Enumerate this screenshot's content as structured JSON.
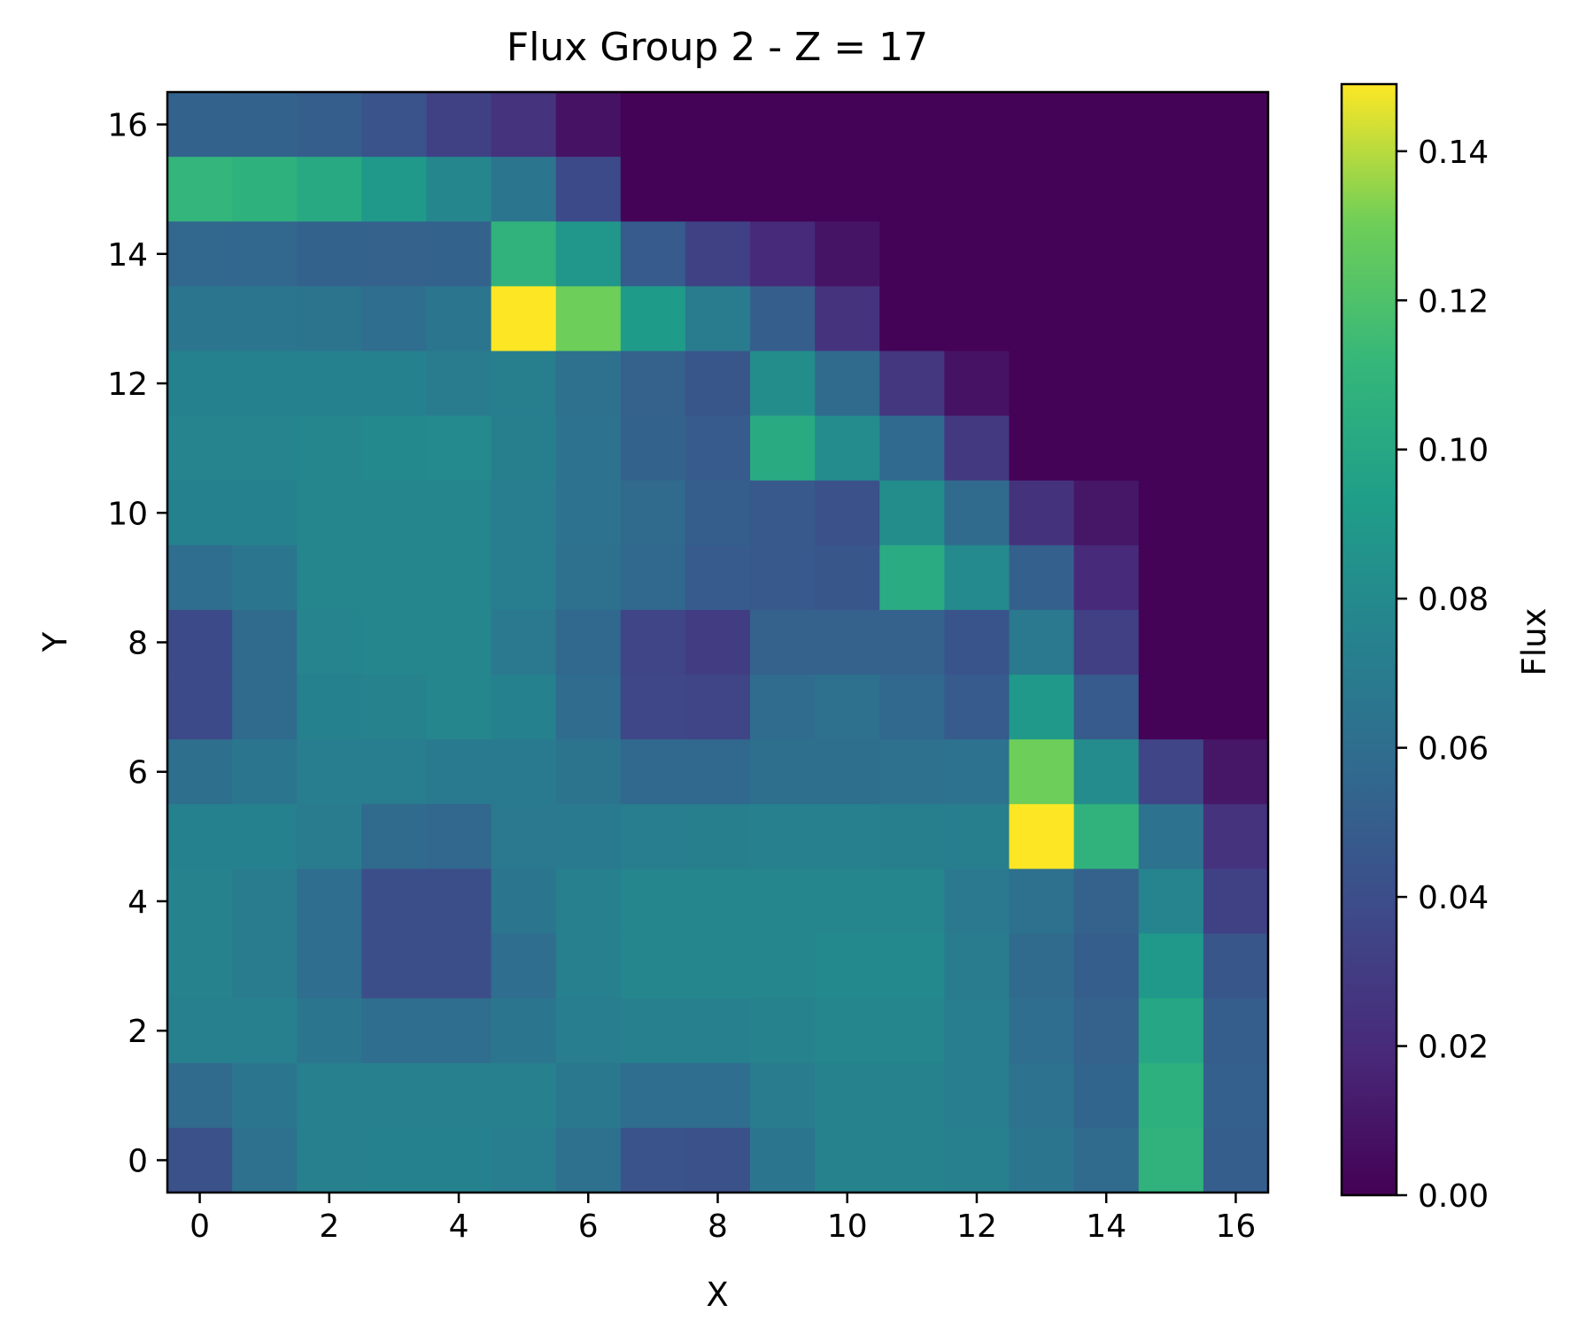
{
  "chart_data": {
    "type": "heatmap",
    "title": "Flux Group 2 - Z = 17",
    "xlabel": "X",
    "ylabel": "Y",
    "x_ticks": [
      "0",
      "2",
      "4",
      "6",
      "8",
      "10",
      "12",
      "14",
      "16"
    ],
    "y_ticks": [
      "0",
      "2",
      "4",
      "6",
      "8",
      "10",
      "12",
      "14",
      "16"
    ],
    "xlim": [
      -0.5,
      16.5
    ],
    "ylim": [
      -0.5,
      16.5
    ],
    "colorbar": {
      "label": "Flux",
      "colormap": "viridis",
      "range": [
        0,
        0.149
      ],
      "ticks": [
        "0.00",
        "0.02",
        "0.04",
        "0.06",
        "0.08",
        "0.10",
        "0.12",
        "0.14"
      ]
    },
    "grid": false,
    "row_order": "top row is Y=16, bottom row is Y=0; columns X=0..16",
    "z": [
      [
        0.053,
        0.053,
        0.05,
        0.043,
        0.033,
        0.025,
        0.008,
        0.001,
        0.001,
        0.001,
        0.001,
        0.001,
        0.001,
        0.001,
        0.001,
        0.001,
        0.001
      ],
      [
        0.11,
        0.107,
        0.101,
        0.09,
        0.077,
        0.065,
        0.038,
        0.001,
        0.001,
        0.001,
        0.001,
        0.001,
        0.001,
        0.001,
        0.001,
        0.001,
        0.001
      ],
      [
        0.055,
        0.055,
        0.053,
        0.052,
        0.053,
        0.108,
        0.088,
        0.048,
        0.033,
        0.02,
        0.009,
        0.001,
        0.001,
        0.001,
        0.001,
        0.001,
        0.001
      ],
      [
        0.066,
        0.066,
        0.064,
        0.06,
        0.065,
        0.149,
        0.13,
        0.092,
        0.07,
        0.05,
        0.025,
        0.001,
        0.001,
        0.001,
        0.001,
        0.001,
        0.001
      ],
      [
        0.074,
        0.074,
        0.074,
        0.074,
        0.07,
        0.072,
        0.062,
        0.052,
        0.045,
        0.082,
        0.058,
        0.027,
        0.008,
        0.001,
        0.001,
        0.001,
        0.001
      ],
      [
        0.076,
        0.076,
        0.077,
        0.079,
        0.08,
        0.072,
        0.063,
        0.053,
        0.048,
        0.102,
        0.081,
        0.057,
        0.028,
        0.001,
        0.001,
        0.001,
        0.001
      ],
      [
        0.074,
        0.074,
        0.078,
        0.078,
        0.077,
        0.071,
        0.063,
        0.058,
        0.05,
        0.047,
        0.042,
        0.082,
        0.058,
        0.024,
        0.01,
        0.001,
        0.001
      ],
      [
        0.06,
        0.066,
        0.078,
        0.078,
        0.078,
        0.071,
        0.062,
        0.056,
        0.048,
        0.047,
        0.045,
        0.103,
        0.08,
        0.051,
        0.02,
        0.001,
        0.001
      ],
      [
        0.038,
        0.058,
        0.076,
        0.077,
        0.077,
        0.068,
        0.056,
        0.035,
        0.03,
        0.052,
        0.052,
        0.052,
        0.044,
        0.068,
        0.032,
        0.001,
        0.001
      ],
      [
        0.038,
        0.058,
        0.074,
        0.075,
        0.077,
        0.074,
        0.059,
        0.036,
        0.035,
        0.059,
        0.062,
        0.056,
        0.048,
        0.09,
        0.048,
        0.001,
        0.001
      ],
      [
        0.061,
        0.066,
        0.071,
        0.071,
        0.069,
        0.069,
        0.064,
        0.056,
        0.056,
        0.061,
        0.061,
        0.062,
        0.063,
        0.13,
        0.081,
        0.035,
        0.01
      ],
      [
        0.074,
        0.074,
        0.07,
        0.058,
        0.055,
        0.068,
        0.069,
        0.071,
        0.072,
        0.073,
        0.073,
        0.072,
        0.072,
        0.149,
        0.108,
        0.063,
        0.025
      ],
      [
        0.075,
        0.07,
        0.06,
        0.04,
        0.04,
        0.065,
        0.073,
        0.077,
        0.077,
        0.077,
        0.077,
        0.077,
        0.068,
        0.062,
        0.052,
        0.076,
        0.033
      ],
      [
        0.075,
        0.07,
        0.06,
        0.04,
        0.04,
        0.06,
        0.073,
        0.077,
        0.077,
        0.077,
        0.079,
        0.079,
        0.07,
        0.058,
        0.05,
        0.09,
        0.045
      ],
      [
        0.073,
        0.073,
        0.066,
        0.06,
        0.06,
        0.066,
        0.071,
        0.073,
        0.073,
        0.075,
        0.077,
        0.077,
        0.071,
        0.06,
        0.052,
        0.099,
        0.05
      ],
      [
        0.058,
        0.065,
        0.073,
        0.073,
        0.073,
        0.073,
        0.067,
        0.06,
        0.06,
        0.07,
        0.075,
        0.075,
        0.071,
        0.063,
        0.054,
        0.106,
        0.051
      ],
      [
        0.042,
        0.062,
        0.073,
        0.074,
        0.074,
        0.071,
        0.062,
        0.043,
        0.042,
        0.066,
        0.075,
        0.075,
        0.073,
        0.066,
        0.058,
        0.108,
        0.05
      ]
    ]
  }
}
